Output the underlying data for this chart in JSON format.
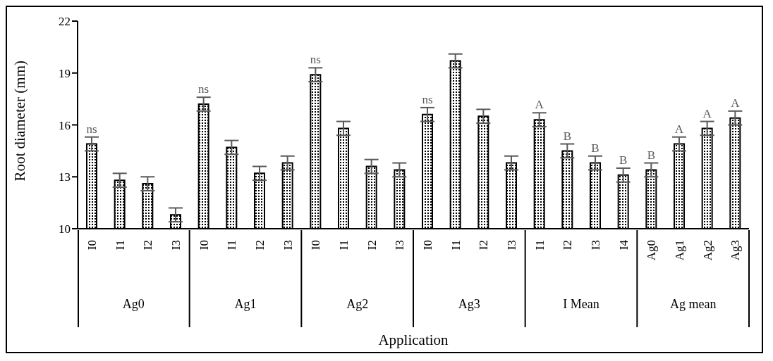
{
  "chart_data": {
    "type": "bar",
    "xlabel": "Application",
    "ylabel": "Root diameter (mm)",
    "categories": [
      "I0",
      "I1",
      "I2",
      "I3",
      "I0",
      "I1",
      "I2",
      "I3",
      "I0",
      "I1",
      "I2",
      "I3",
      "I0",
      "I1",
      "I2",
      "I3",
      "I1",
      "I2",
      "I3",
      "I4",
      "Ag0",
      "Ag1",
      "Ag2",
      "Ag3"
    ],
    "values": [
      14.9,
      12.8,
      12.6,
      10.8,
      17.2,
      14.7,
      13.2,
      13.8,
      18.9,
      15.8,
      13.6,
      13.4,
      16.6,
      19.7,
      16.5,
      13.8,
      16.3,
      14.5,
      13.8,
      13.1,
      13.4,
      14.9,
      15.8,
      16.4
    ],
    "errors": [
      0.4,
      0.4,
      0.4,
      0.4,
      0.4,
      0.4,
      0.4,
      0.4,
      0.4,
      0.4,
      0.4,
      0.4,
      0.4,
      0.4,
      0.4,
      0.4,
      0.4,
      0.4,
      0.4,
      0.4,
      0.4,
      0.4,
      0.4,
      0.4
    ],
    "value_labels": [
      "ns",
      null,
      null,
      null,
      "ns",
      null,
      null,
      null,
      "ns",
      null,
      null,
      null,
      "ns",
      null,
      null,
      null,
      "A",
      "B",
      "B",
      "B",
      "B",
      "A",
      "A",
      "A"
    ],
    "annotations": [
      "Ag0",
      "Ag1",
      "Ag2",
      "Ag3",
      "I Mean",
      "Ag mean"
    ],
    "color": "#000000",
    "ylim": [
      10,
      22
    ],
    "yticks": [
      10,
      13,
      16,
      19,
      22
    ],
    "grid": false,
    "legend": false
  }
}
